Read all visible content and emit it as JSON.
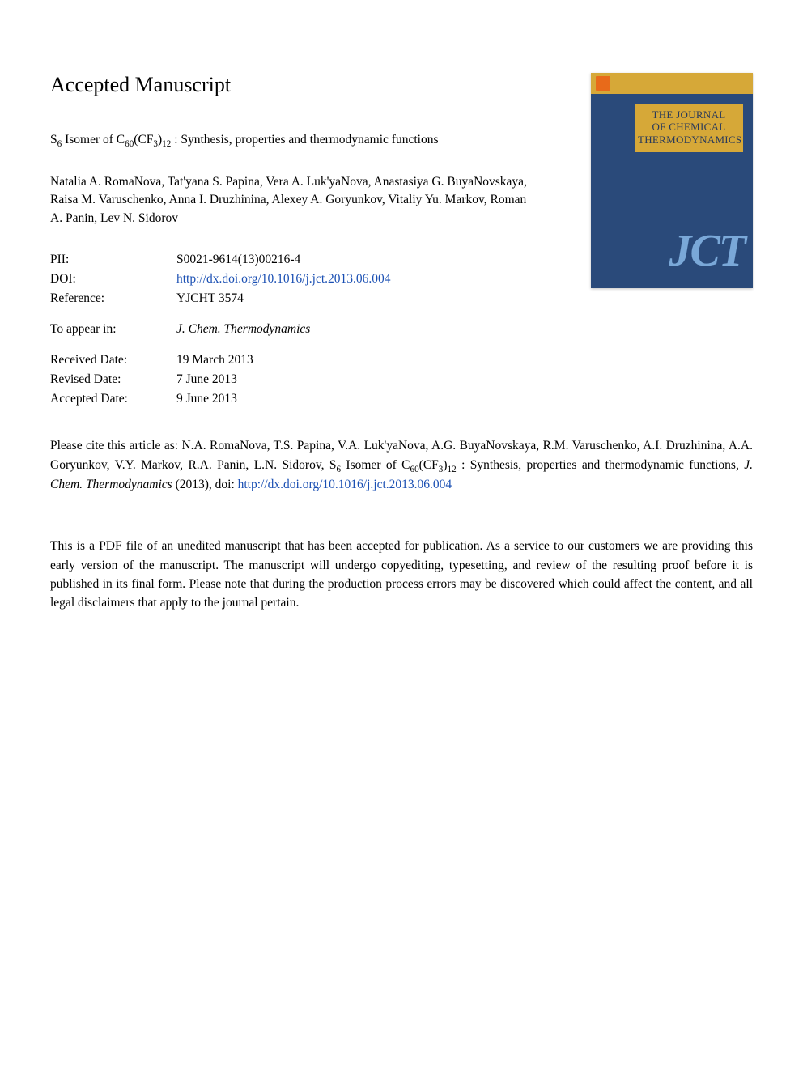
{
  "heading": "Accepted Manuscript",
  "article": {
    "title_prefix": "S",
    "title_sub1": "6",
    "title_mid1": " Isomer of C",
    "title_sub2": "60",
    "title_mid2": "(CF",
    "title_sub3": "3",
    "title_mid3": ")",
    "title_sub4": "12",
    "title_suffix": " : Synthesis, properties and thermodynamic functions",
    "authors": "Natalia A. RomaNova, Tat'yana S. Papina, Vera A. Luk'yaNova, Anastasiya G. BuyaNovskaya, Raisa M. Varuschenko, Anna I. Druzhinina, Alexey A. Goryunkov, Vitaliy Yu. Markov, Roman A. Panin, Lev N. Sidorov"
  },
  "meta": {
    "pii_label": "PII:",
    "pii_value": "S0021-9614(13)00216-4",
    "doi_label": "DOI:",
    "doi_value": "http://dx.doi.org/10.1016/j.jct.2013.06.004",
    "ref_label": "Reference:",
    "ref_value": "YJCHT 3574",
    "appear_label": "To appear in:",
    "appear_value": "J. Chem. Thermodynamics",
    "received_label": "Received Date:",
    "received_value": "19 March 2013",
    "revised_label": "Revised Date:",
    "revised_value": "7 June 2013",
    "accepted_label": "Accepted Date:",
    "accepted_value": "9 June 2013"
  },
  "cover": {
    "line1": "THE JOURNAL",
    "line2": "OF CHEMICAL",
    "line3": "THERMODYNAMICS",
    "abbrev": "JCT",
    "bg_color": "#2a4a7a",
    "band_color": "#d6a838",
    "title_text_color": "#2a3a5a",
    "abbrev_color": "#7aa8d8",
    "elsevier_color": "#e86a1a"
  },
  "citation": {
    "lead": "Please cite this article as: N.A. RomaNova, T.S. Papina, V.A. Luk'yaNova, A.G. BuyaNovskaya, R.M. Varuschenko, A.I. Druzhinina, A.A. Goryunkov, V.Y. Markov, R.A. Panin, L.N. Sidorov, S",
    "sub1": "6",
    "mid1": " Isomer of C",
    "sub2": "60",
    "mid2": "(CF",
    "sub3": "3",
    "mid3": ")",
    "sub4": "12",
    "mid4": " : Synthesis, properties and thermodynamic functions, ",
    "journal": "J. Chem. Thermodynamics",
    "year": " (2013), doi: ",
    "link": "http://dx.doi.org/10.1016/j.jct.2013.06.004"
  },
  "disclaimer": "This is a PDF file of an unedited manuscript that has been accepted for publication. As a service to our customers we are providing this early version of the manuscript. The manuscript will undergo copyediting, typesetting, and review of the resulting proof before it is published in its final form. Please note that during the production process errors may be discovered which could affect the content, and all legal disclaimers that apply to the journal pertain.",
  "colors": {
    "text": "#000000",
    "link": "#1a4fb3",
    "background": "#ffffff"
  },
  "typography": {
    "heading_fontsize_pt": 20,
    "body_fontsize_pt": 11.5,
    "font_family": "Times New Roman"
  }
}
